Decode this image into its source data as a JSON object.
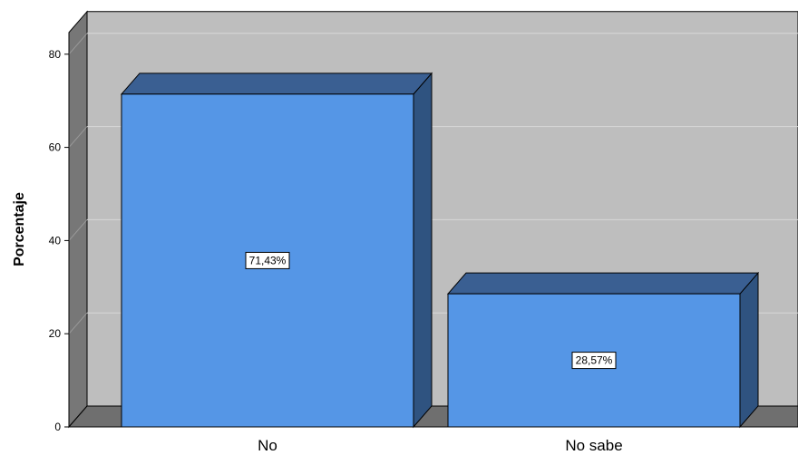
{
  "chart_data": {
    "type": "bar",
    "categories": [
      "No",
      "No sabe"
    ],
    "values": [
      71.43,
      28.57
    ],
    "data_labels": [
      "71,43%",
      "28,57%"
    ],
    "ylabel": "Porcentaje",
    "xlabel": "",
    "ylim": [
      0,
      80
    ],
    "yticks": [
      "0",
      "20",
      "40",
      "60",
      "80"
    ],
    "grid": true,
    "three_d": true,
    "colors": {
      "bar_front": "#5596e6",
      "bar_top": "#3a5f92",
      "bar_side": "#2f5380",
      "wall_back": "#bebebe",
      "wall_side": "#777777",
      "floor": "#6f6f6f",
      "gridline": "#d8d8d8"
    }
  }
}
